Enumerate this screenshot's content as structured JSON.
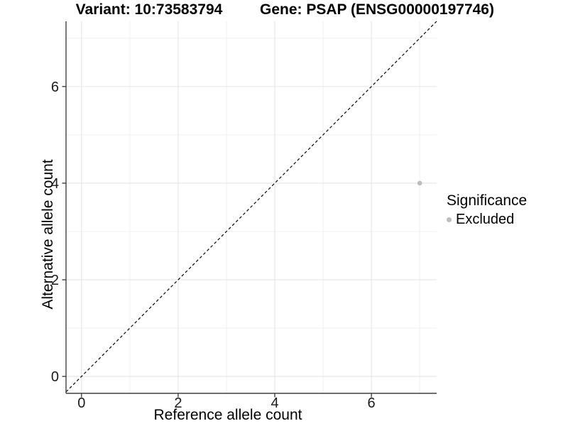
{
  "titles": {
    "variant": "Variant: 10:73583794",
    "gene": "Gene: PSAP (ENSG00000197746)"
  },
  "chart_data": {
    "type": "scatter",
    "title": "Variant: 10:73583794          Gene: PSAP (ENSG00000197746)",
    "xlabel": "Reference allele count",
    "ylabel": "Alternative allele count",
    "xlim": [
      -0.32,
      7.35
    ],
    "ylim": [
      -0.35,
      7.35
    ],
    "x_ticks": [
      0,
      2,
      4,
      6
    ],
    "y_ticks": [
      0,
      2,
      4,
      6
    ],
    "x_minor_ticks": [
      1,
      3,
      5,
      7
    ],
    "y_minor_ticks": [
      1,
      3,
      5,
      7
    ],
    "grid": true,
    "series": [
      {
        "name": "Excluded",
        "color": "#bdbdbd",
        "points": [
          {
            "x": 7,
            "y": 4
          }
        ]
      }
    ],
    "reference_line": {
      "type": "identity",
      "equation": "y = x",
      "style": "dashed",
      "color": "#000000"
    },
    "legend": {
      "title": "Significance",
      "position": "right",
      "entries": [
        {
          "label": "Excluded",
          "color": "#bdbdbd"
        }
      ]
    }
  },
  "colors": {
    "background": "#ffffff",
    "axis_line": "#404040",
    "tick_text": "#1a1a1a",
    "grid_major": "#e5e5e5",
    "grid_minor": "#efefef",
    "point": "#bdbdbd"
  }
}
